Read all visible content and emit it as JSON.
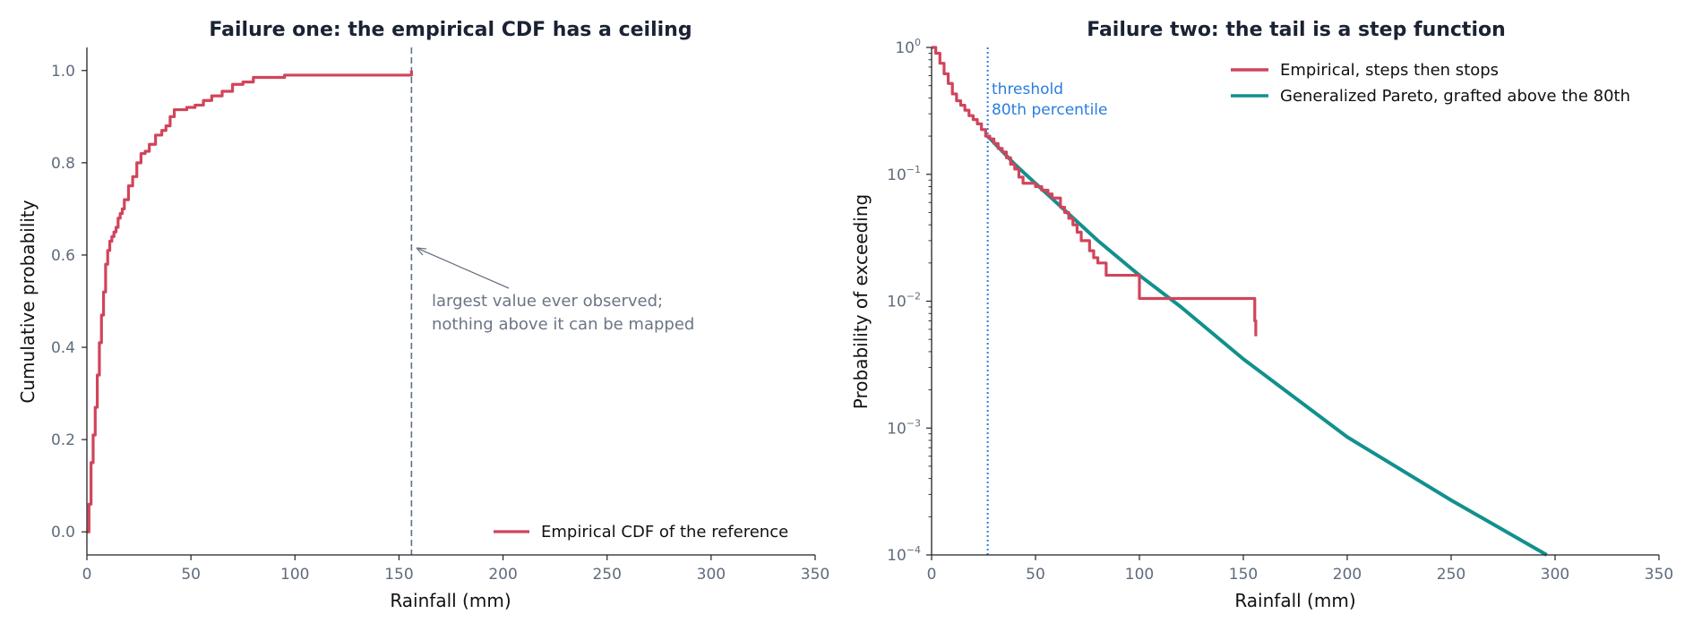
{
  "chart_data": [
    {
      "type": "line",
      "title": "Failure one: the empirical CDF has a ceiling",
      "xlabel": "Rainfall (mm)",
      "ylabel": "Cumulative probability",
      "xlim": [
        0,
        350
      ],
      "ylim": [
        -0.05,
        1.05
      ],
      "x_ticks": [
        0,
        50,
        100,
        150,
        200,
        250,
        300,
        350
      ],
      "y_ticks": [
        0.0,
        0.2,
        0.4,
        0.6,
        0.8,
        1.0
      ],
      "x_tick_labels": [
        "0",
        "50",
        "100",
        "150",
        "200",
        "250",
        "300",
        "350"
      ],
      "y_tick_labels": [
        "0.0",
        "0.2",
        "0.4",
        "0.6",
        "0.8",
        "1.0"
      ],
      "grid": false,
      "legend_position": "lower-right",
      "series": [
        {
          "name": "Empirical CDF of the reference",
          "color": "#d1445a",
          "x": [
            0,
            1,
            2,
            3,
            4,
            5,
            6,
            7,
            8,
            9,
            10,
            11,
            12,
            13,
            14,
            15,
            16,
            17,
            18,
            20,
            22,
            24,
            26,
            28,
            30,
            33,
            36,
            38,
            40,
            42,
            44,
            48,
            52,
            56,
            60,
            65,
            70,
            75,
            80,
            90,
            95,
            110,
            130,
            150,
            155,
            156
          ],
          "y": [
            0.0,
            0.06,
            0.15,
            0.21,
            0.27,
            0.34,
            0.41,
            0.47,
            0.52,
            0.58,
            0.61,
            0.63,
            0.64,
            0.65,
            0.66,
            0.68,
            0.69,
            0.7,
            0.72,
            0.75,
            0.77,
            0.8,
            0.82,
            0.825,
            0.84,
            0.86,
            0.87,
            0.88,
            0.9,
            0.915,
            0.915,
            0.92,
            0.925,
            0.935,
            0.945,
            0.955,
            0.97,
            0.975,
            0.985,
            0.985,
            0.99,
            0.99,
            0.99,
            0.99,
            0.99,
            1.0
          ]
        }
      ],
      "vlines": [
        {
          "x": 156,
          "style": "dashed",
          "color": "#5f708a"
        }
      ],
      "annotations": [
        {
          "text_lines": [
            "largest value ever observed;",
            "nothing above it can be mapped"
          ],
          "arrow_to": [
            156,
            0.62
          ],
          "text_at": [
            165,
            0.5
          ]
        }
      ]
    },
    {
      "type": "line",
      "title": "Failure two: the tail is a step function",
      "xlabel": "Rainfall (mm)",
      "ylabel": "Probability of exceeding",
      "xlim": [
        0,
        350
      ],
      "ylim": [
        0.0001,
        1
      ],
      "y_scale": "log",
      "x_ticks": [
        0,
        50,
        100,
        150,
        200,
        250,
        300,
        350
      ],
      "x_tick_labels": [
        "0",
        "50",
        "100",
        "150",
        "200",
        "250",
        "300",
        "350"
      ],
      "y_ticks": [
        0.0001,
        0.001,
        0.01,
        0.1,
        1
      ],
      "y_tick_labels": [
        {
          "base": "10",
          "exp": "−4"
        },
        {
          "base": "10",
          "exp": "−3"
        },
        {
          "base": "10",
          "exp": "−2"
        },
        {
          "base": "10",
          "exp": "−1"
        },
        {
          "base": "10",
          "exp": "0"
        }
      ],
      "grid": false,
      "legend_position": "top-right",
      "series": [
        {
          "name": "Empirical, steps then stops",
          "color": "#d1445a",
          "x": [
            0,
            2,
            4,
            6,
            8,
            10,
            12,
            14,
            16,
            18,
            20,
            22,
            24,
            26,
            28,
            30,
            32,
            34,
            36,
            38,
            40,
            42,
            44,
            48,
            50,
            53,
            56,
            58,
            60,
            62,
            64,
            66,
            68,
            70,
            72,
            74,
            76,
            78,
            80,
            82,
            84,
            92,
            95,
            100,
            110,
            130,
            150,
            155,
            155.5,
            156
          ],
          "y": [
            1.0,
            0.9,
            0.75,
            0.62,
            0.52,
            0.43,
            0.38,
            0.35,
            0.32,
            0.29,
            0.27,
            0.25,
            0.225,
            0.2,
            0.19,
            0.175,
            0.16,
            0.15,
            0.135,
            0.12,
            0.11,
            0.095,
            0.085,
            0.085,
            0.08,
            0.075,
            0.07,
            0.065,
            0.065,
            0.055,
            0.05,
            0.045,
            0.04,
            0.035,
            0.03,
            0.03,
            0.025,
            0.022,
            0.02,
            0.02,
            0.016,
            0.016,
            0.016,
            0.0105,
            0.0105,
            0.0105,
            0.0105,
            0.0105,
            0.007,
            0.0053
          ]
        },
        {
          "name": "Generalized Pareto, grafted above the 80th",
          "color": "#12908e",
          "x": [
            27,
            40,
            60,
            80,
            100,
            120,
            150,
            200,
            250,
            296
          ],
          "y": [
            0.2,
            0.12,
            0.06,
            0.03,
            0.016,
            0.009,
            0.0035,
            0.00085,
            0.00027,
            0.0001
          ]
        }
      ],
      "vlines": [
        {
          "x": 27,
          "style": "dotted",
          "color": "#2a7de1",
          "label_lines": [
            "threshold",
            "80th percentile"
          ]
        }
      ]
    }
  ]
}
